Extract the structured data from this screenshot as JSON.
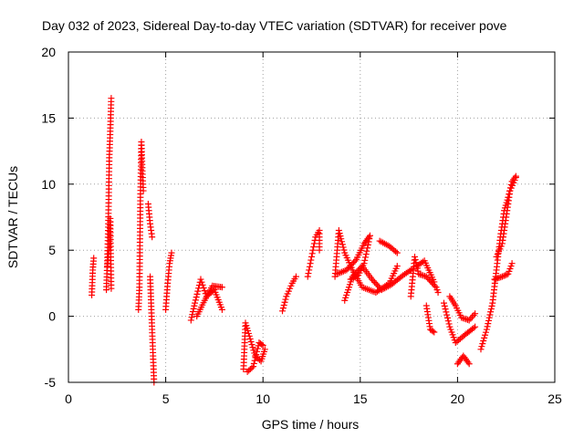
{
  "chart_data": {
    "type": "scatter",
    "title": "Day 032 of 2023, Sidereal Day-to-day VTEC variation (SDTVAR) for receiver pove",
    "xlabel": "GPS time / hours",
    "ylabel": "SDTVAR / TECUs",
    "xlim": [
      0,
      25
    ],
    "ylim": [
      -5,
      20
    ],
    "xticks": [
      0,
      5,
      10,
      15,
      20,
      25
    ],
    "yticks": [
      -5,
      0,
      5,
      10,
      15,
      20
    ],
    "xtick_labels": [
      "0",
      "5",
      "10",
      "15",
      "20",
      "25"
    ],
    "ytick_labels": [
      "-5",
      "0",
      "5",
      "10",
      "15",
      "20"
    ],
    "grid": true,
    "marker": "+",
    "color": "#ff0000",
    "segments": [
      [
        [
          1.2,
          1.6
        ],
        [
          1.25,
          3.5
        ],
        [
          1.3,
          4.4
        ]
      ],
      [
        [
          1.95,
          2.0
        ],
        [
          2.0,
          4.2
        ],
        [
          2.05,
          7.0
        ],
        [
          2.1,
          12.0
        ],
        [
          2.15,
          14.0
        ],
        [
          2.2,
          16.5
        ]
      ],
      [
        [
          2.0,
          3.8
        ],
        [
          2.1,
          5.2
        ],
        [
          2.15,
          7.4
        ],
        [
          2.2,
          2.1
        ]
      ],
      [
        [
          3.6,
          0.5
        ],
        [
          3.65,
          2.2
        ],
        [
          3.7,
          9.0
        ],
        [
          3.75,
          13.2
        ],
        [
          3.8,
          11.0
        ],
        [
          3.85,
          9.5
        ]
      ],
      [
        [
          4.1,
          8.5
        ],
        [
          4.2,
          7.0
        ],
        [
          4.3,
          6.0
        ]
      ],
      [
        [
          4.2,
          3.0
        ],
        [
          4.25,
          1.0
        ],
        [
          4.3,
          -1.0
        ],
        [
          4.35,
          -3.0
        ],
        [
          4.4,
          -5.0
        ]
      ],
      [
        [
          5.0,
          0.5
        ],
        [
          5.1,
          2.5
        ],
        [
          5.2,
          4.0
        ],
        [
          5.3,
          4.8
        ]
      ],
      [
        [
          6.3,
          -0.3
        ],
        [
          6.5,
          1.0
        ],
        [
          6.8,
          2.8
        ],
        [
          7.1,
          1.5
        ],
        [
          7.5,
          2.0
        ],
        [
          7.9,
          0.5
        ]
      ],
      [
        [
          6.6,
          0.0
        ],
        [
          7.0,
          1.2
        ],
        [
          7.4,
          2.3
        ],
        [
          7.9,
          2.2
        ]
      ],
      [
        [
          9.0,
          -4.0
        ],
        [
          9.1,
          -0.5
        ],
        [
          9.3,
          -1.5
        ],
        [
          9.6,
          -3.0
        ],
        [
          9.9,
          -3.4
        ],
        [
          10.1,
          -2.5
        ]
      ],
      [
        [
          9.2,
          -4.2
        ],
        [
          9.5,
          -3.8
        ],
        [
          9.8,
          -2.0
        ],
        [
          10.0,
          -2.2
        ]
      ],
      [
        [
          11.0,
          0.4
        ],
        [
          11.2,
          1.5
        ],
        [
          11.5,
          2.5
        ],
        [
          11.7,
          3.0
        ]
      ],
      [
        [
          12.3,
          3.0
        ],
        [
          12.5,
          4.5
        ],
        [
          12.7,
          6.0
        ],
        [
          12.9,
          6.5
        ],
        [
          12.9,
          5.0
        ]
      ],
      [
        [
          13.7,
          3.0
        ],
        [
          13.9,
          6.5
        ],
        [
          14.2,
          4.8
        ],
        [
          14.6,
          3.5
        ],
        [
          15.1,
          2.2
        ],
        [
          15.8,
          1.8
        ],
        [
          16.5,
          2.5
        ],
        [
          16.9,
          3.8
        ]
      ],
      [
        [
          13.8,
          3.2
        ],
        [
          14.3,
          3.5
        ],
        [
          14.8,
          4.3
        ],
        [
          15.2,
          5.5
        ],
        [
          15.5,
          6.1
        ],
        [
          15.2,
          4.0
        ],
        [
          14.9,
          3.1
        ],
        [
          14.5,
          2.8
        ]
      ],
      [
        [
          14.2,
          1.2
        ],
        [
          14.6,
          3.0
        ],
        [
          15.1,
          3.8
        ],
        [
          15.6,
          2.8
        ],
        [
          16.1,
          2.0
        ],
        [
          16.6,
          2.4
        ],
        [
          17.2,
          3.1
        ],
        [
          17.7,
          3.6
        ]
      ],
      [
        [
          16.0,
          5.7
        ],
        [
          16.5,
          5.3
        ],
        [
          16.9,
          4.8
        ]
      ],
      [
        [
          17.6,
          1.5
        ],
        [
          17.8,
          4.5
        ],
        [
          18.0,
          3.2
        ],
        [
          18.4,
          3.0
        ],
        [
          18.9,
          2.2
        ],
        [
          19.0,
          1.8
        ]
      ],
      [
        [
          17.9,
          3.8
        ],
        [
          18.3,
          4.2
        ],
        [
          18.8,
          2.6
        ]
      ],
      [
        [
          18.4,
          0.8
        ],
        [
          18.6,
          -1.0
        ],
        [
          18.8,
          -1.2
        ]
      ],
      [
        [
          19.3,
          1.0
        ],
        [
          19.6,
          -0.8
        ],
        [
          19.9,
          -2.0
        ],
        [
          20.3,
          -1.5
        ],
        [
          20.9,
          -0.8
        ]
      ],
      [
        [
          19.6,
          1.5
        ],
        [
          19.9,
          0.8
        ],
        [
          20.2,
          -0.1
        ],
        [
          20.6,
          -0.3
        ],
        [
          20.9,
          0.2
        ]
      ],
      [
        [
          20.0,
          -3.6
        ],
        [
          20.3,
          -3.0
        ],
        [
          20.6,
          -3.6
        ]
      ],
      [
        [
          21.2,
          -2.5
        ],
        [
          21.5,
          -1.0
        ],
        [
          21.8,
          1.0
        ],
        [
          22.0,
          3.5
        ],
        [
          22.2,
          6.0
        ],
        [
          22.4,
          8.0
        ],
        [
          22.6,
          9.0
        ],
        [
          22.8,
          10.2
        ],
        [
          23.0,
          10.6
        ]
      ],
      [
        [
          21.9,
          2.8
        ],
        [
          22.3,
          3.0
        ],
        [
          22.6,
          3.2
        ],
        [
          22.8,
          4.0
        ]
      ],
      [
        [
          22.0,
          4.5
        ],
        [
          22.3,
          5.5
        ],
        [
          22.5,
          7.5
        ],
        [
          22.7,
          9.5
        ],
        [
          23.0,
          10.5
        ]
      ]
    ]
  }
}
